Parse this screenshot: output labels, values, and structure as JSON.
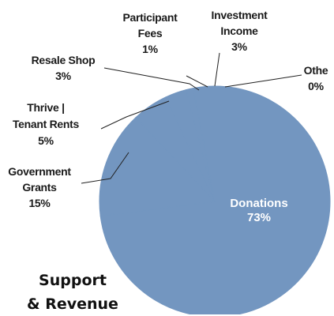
{
  "chart_data": {
    "type": "pie",
    "title": "Support & Revenue",
    "title_lines": [
      "Support",
      "& Revenue"
    ],
    "slice_color": "#7396c0",
    "inside_label_color": "#ffffff",
    "slices": [
      {
        "label": "Donations",
        "value": 73,
        "pct": "73%",
        "lines": [
          "Donations",
          "73%"
        ]
      },
      {
        "label": "Government Grants",
        "value": 15,
        "pct": "15%",
        "lines": [
          "Government",
          "Grants",
          "15%"
        ]
      },
      {
        "label": "Thrive | Tenant Rents",
        "value": 5,
        "pct": "5%",
        "lines": [
          "Thrive |",
          "Tenant Rents",
          "5%"
        ]
      },
      {
        "label": "Resale Shop",
        "value": 3,
        "pct": "3%",
        "lines": [
          "Resale Shop",
          "3%"
        ]
      },
      {
        "label": "Participant Fees",
        "value": 1,
        "pct": "1%",
        "lines": [
          "Participant",
          "Fees",
          "1%"
        ]
      },
      {
        "label": "Investment Income",
        "value": 3,
        "pct": "3%",
        "lines": [
          "Investment",
          "Income",
          "3%"
        ]
      },
      {
        "label": "Othe",
        "value": 0,
        "pct": "0%",
        "lines": [
          "Othe",
          "0%"
        ]
      }
    ]
  }
}
